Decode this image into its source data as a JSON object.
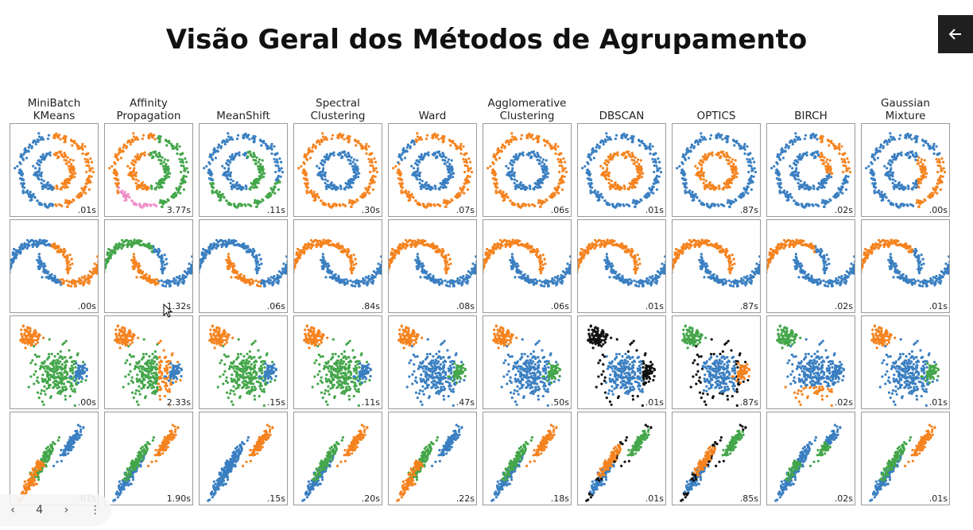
{
  "title": "Visão Geral dos Métodos de Agrupamento",
  "nav": {
    "back_icon": "arrow-left-icon",
    "prev_icon": "chevron-left-icon",
    "next_icon": "chevron-right-icon",
    "page": "4",
    "more": "⋮"
  },
  "colors": {
    "blue": "#3a7fc1",
    "orange": "#f5831f",
    "green": "#44a64a",
    "pink": "#f08ec8",
    "black": "#111111"
  },
  "methods": [
    {
      "name": "MiniBatch\nKMeans",
      "times": [
        ".01s",
        ".00s",
        ".00s",
        ".01s"
      ]
    },
    {
      "name": "Affinity\nPropagation",
      "times": [
        "3.77s",
        "1.32s",
        "2.33s",
        "1.90s"
      ]
    },
    {
      "name": "MeanShift",
      "times": [
        ".11s",
        ".06s",
        ".15s",
        ".15s"
      ]
    },
    {
      "name": "Spectral\nClustering",
      "times": [
        ".30s",
        ".84s",
        ".11s",
        ".20s"
      ]
    },
    {
      "name": "Ward",
      "times": [
        ".07s",
        ".08s",
        ".47s",
        ".22s"
      ]
    },
    {
      "name": "Agglomerative\nClustering",
      "times": [
        ".06s",
        ".06s",
        ".50s",
        ".18s"
      ]
    },
    {
      "name": "DBSCAN",
      "times": [
        ".01s",
        ".01s",
        ".01s",
        ".01s"
      ]
    },
    {
      "name": "OPTICS",
      "times": [
        ".87s",
        ".87s",
        ".87s",
        ".85s"
      ]
    },
    {
      "name": "BIRCH",
      "times": [
        ".02s",
        ".02s",
        ".02s",
        ".02s"
      ]
    },
    {
      "name": "Gaussian\nMixture",
      "times": [
        ".00s",
        ".01s",
        ".01s",
        ".01s"
      ]
    }
  ]
}
